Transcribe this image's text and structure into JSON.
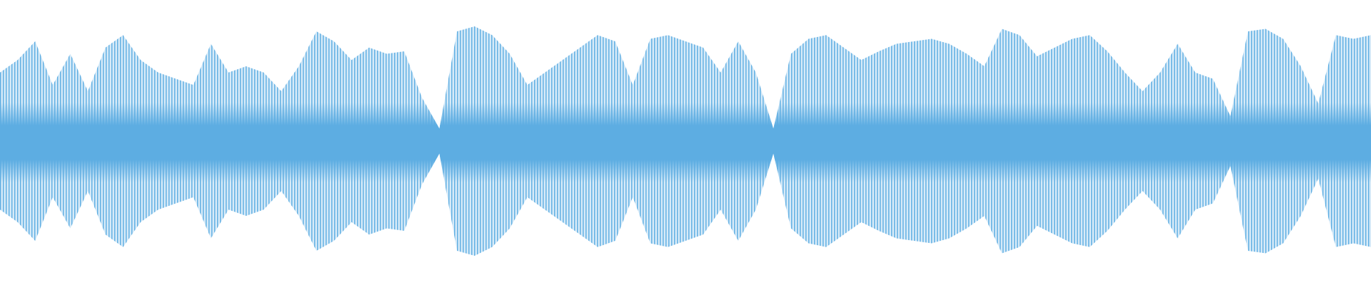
{
  "chart_data": {
    "type": "waveform",
    "color": "#5dade2",
    "ylim": [
      0,
      1
    ],
    "values": [
      0.55,
      0.65,
      0.8,
      0.45,
      0.7,
      0.4,
      0.75,
      0.85,
      0.65,
      0.55,
      0.5,
      0.45,
      0.78,
      0.55,
      0.6,
      0.55,
      0.4,
      0.6,
      0.88,
      0.8,
      0.65,
      0.75,
      0.7,
      0.72,
      0.35,
      0.1,
      0.88,
      0.92,
      0.85,
      0.7,
      0.45,
      0.55,
      0.65,
      0.75,
      0.85,
      0.8,
      0.45,
      0.82,
      0.85,
      0.8,
      0.75,
      0.55,
      0.8,
      0.55,
      0.1,
      0.7,
      0.82,
      0.85,
      0.75,
      0.65,
      0.72,
      0.78,
      0.8,
      0.82,
      0.78,
      0.7,
      0.6,
      0.9,
      0.85,
      0.68,
      0.75,
      0.82,
      0.85,
      0.72,
      0.55,
      0.4,
      0.55,
      0.78,
      0.55,
      0.5,
      0.2,
      0.88,
      0.9,
      0.82,
      0.6,
      0.3,
      0.85,
      0.82,
      0.85
    ]
  }
}
